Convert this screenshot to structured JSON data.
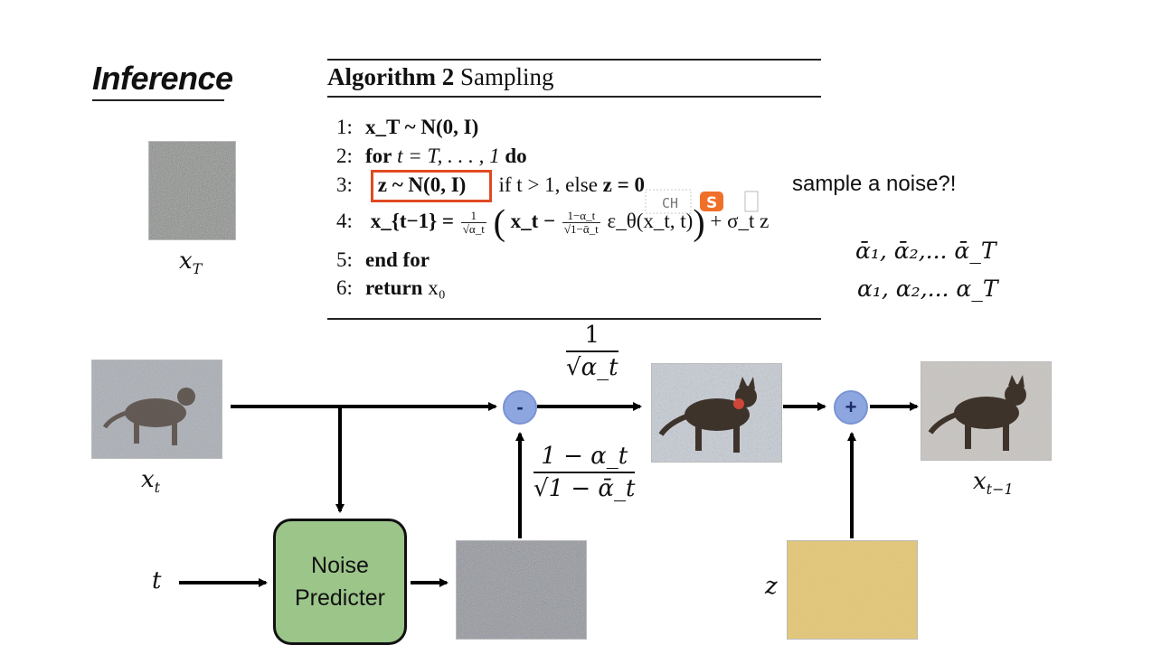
{
  "title": "Inference",
  "algorithm": {
    "label_bold": "Algorithm 2",
    "label_rest": "Sampling",
    "lines": [
      {
        "num": "1:",
        "text": "x_T ~ N(0, I)"
      },
      {
        "num": "2:",
        "kw": "for",
        "text": " t = T, . . . , 1 ",
        "kw2": "do"
      },
      {
        "num": "3:",
        "boxed": "z ~ N(0, I)",
        "text": " if t > 1, else ",
        "tail": "z = 0"
      },
      {
        "num": "4:",
        "lhs": "x_{t−1} =",
        "f1n": "1",
        "f1d": "√α_t",
        "inner": "x_t −",
        "f2n": "1−α_t",
        "f2d": "√1−ᾱ_t",
        "eps": "ε_θ(x_t, t)",
        "rest": "+ σ_t z"
      },
      {
        "num": "5:",
        "kw": "end for"
      },
      {
        "num": "6:",
        "kw": "return",
        "text": " x₀"
      }
    ]
  },
  "annotations": {
    "sample_noise": "sample a noise?!",
    "alpha_bar_seq": "ᾱ₁, ᾱ₂,... ᾱ_T",
    "alpha_seq": "α₁, α₂,... α_T"
  },
  "labels": {
    "xT": "x",
    "xT_sub": "T",
    "xt": "x",
    "xt_sub": "t",
    "xt1": "x",
    "xt1_sub": "t−1",
    "t": "t",
    "z": "z",
    "minus": "-",
    "plus": "+",
    "coef1_num": "1",
    "coef1_den": "√α_t",
    "coef2_num": "1 − α_t",
    "coef2_den": "√1 − ᾱ_t",
    "noise_predicter_1": "Noise",
    "noise_predicter_2": "Predicter"
  },
  "overlay": {
    "ime_text": "CH"
  },
  "colors": {
    "highlight": "#e04a22",
    "circle": "#8ea6e0",
    "predictor": "#9cc58a",
    "z_noise": "#e6c874"
  }
}
